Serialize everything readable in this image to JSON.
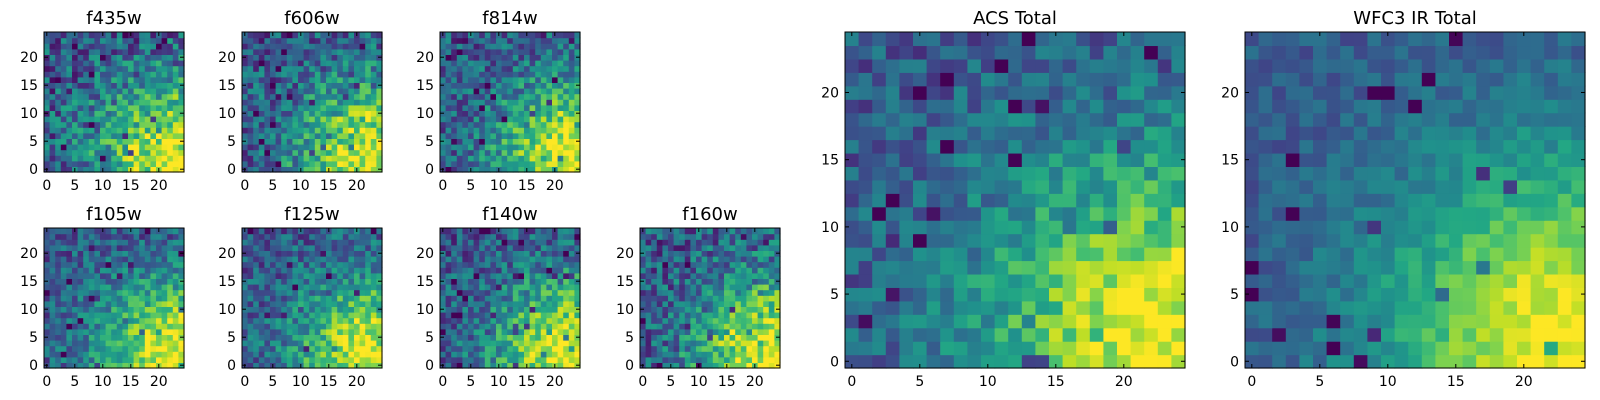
{
  "chart_data": [
    {
      "id": "f435w",
      "type": "heatmap",
      "title": "f435w",
      "grid_size": 25,
      "xlim": [
        0,
        24
      ],
      "ylim": [
        0,
        24
      ],
      "xticks": [
        0,
        5,
        10,
        15,
        20
      ],
      "yticks": [
        0,
        5,
        10,
        15,
        20
      ],
      "xtick_labels": [
        "0",
        "5",
        "10",
        "15",
        "20"
      ],
      "ytick_labels": [
        "0",
        "5",
        "10",
        "15",
        "20"
      ],
      "colormap": "viridis",
      "bright_region": "bottom-right",
      "noise": 0.33,
      "seed": 11
    },
    {
      "id": "f606w",
      "type": "heatmap",
      "title": "f606w",
      "grid_size": 25,
      "xlim": [
        0,
        24
      ],
      "ylim": [
        0,
        24
      ],
      "xticks": [
        0,
        5,
        10,
        15,
        20
      ],
      "yticks": [
        0,
        5,
        10,
        15,
        20
      ],
      "xtick_labels": [
        "0",
        "5",
        "10",
        "15",
        "20"
      ],
      "ytick_labels": [
        "0",
        "5",
        "10",
        "15",
        "20"
      ],
      "colormap": "viridis",
      "bright_region": "bottom-right",
      "noise": 0.3,
      "seed": 23
    },
    {
      "id": "f814w",
      "type": "heatmap",
      "title": "f814w",
      "grid_size": 25,
      "xlim": [
        0,
        24
      ],
      "ylim": [
        0,
        24
      ],
      "xticks": [
        0,
        5,
        10,
        15,
        20
      ],
      "yticks": [
        0,
        5,
        10,
        15,
        20
      ],
      "xtick_labels": [
        "0",
        "5",
        "10",
        "15",
        "20"
      ],
      "ytick_labels": [
        "0",
        "5",
        "10",
        "15",
        "20"
      ],
      "colormap": "viridis",
      "bright_region": "bottom-right",
      "noise": 0.28,
      "seed": 37
    },
    {
      "id": "f105w",
      "type": "heatmap",
      "title": "f105w",
      "grid_size": 25,
      "xlim": [
        0,
        24
      ],
      "ylim": [
        0,
        24
      ],
      "xticks": [
        0,
        5,
        10,
        15,
        20
      ],
      "yticks": [
        0,
        5,
        10,
        15,
        20
      ],
      "xtick_labels": [
        "0",
        "5",
        "10",
        "15",
        "20"
      ],
      "ytick_labels": [
        "0",
        "5",
        "10",
        "15",
        "20"
      ],
      "colormap": "viridis",
      "bright_region": "bottom-right",
      "noise": 0.24,
      "seed": 41
    },
    {
      "id": "f125w",
      "type": "heatmap",
      "title": "f125w",
      "grid_size": 25,
      "xlim": [
        0,
        24
      ],
      "ylim": [
        0,
        24
      ],
      "xticks": [
        0,
        5,
        10,
        15,
        20
      ],
      "yticks": [
        0,
        5,
        10,
        15,
        20
      ],
      "xtick_labels": [
        "0",
        "5",
        "10",
        "15",
        "20"
      ],
      "ytick_labels": [
        "0",
        "5",
        "10",
        "15",
        "20"
      ],
      "colormap": "viridis",
      "bright_region": "bottom-right",
      "noise": 0.26,
      "seed": 53
    },
    {
      "id": "f140w",
      "type": "heatmap",
      "title": "f140w",
      "grid_size": 25,
      "xlim": [
        0,
        24
      ],
      "ylim": [
        0,
        24
      ],
      "xticks": [
        0,
        5,
        10,
        15,
        20
      ],
      "yticks": [
        0,
        5,
        10,
        15,
        20
      ],
      "xtick_labels": [
        "0",
        "5",
        "10",
        "15",
        "20"
      ],
      "ytick_labels": [
        "0",
        "5",
        "10",
        "15",
        "20"
      ],
      "colormap": "viridis",
      "bright_region": "bottom-right",
      "noise": 0.27,
      "seed": 67
    },
    {
      "id": "f160w",
      "type": "heatmap",
      "title": "f160w",
      "grid_size": 25,
      "xlim": [
        0,
        24
      ],
      "ylim": [
        0,
        24
      ],
      "xticks": [
        0,
        5,
        10,
        15,
        20
      ],
      "yticks": [
        0,
        5,
        10,
        15,
        20
      ],
      "xtick_labels": [
        "0",
        "5",
        "10",
        "15",
        "20"
      ],
      "ytick_labels": [
        "0",
        "5",
        "10",
        "15",
        "20"
      ],
      "colormap": "viridis",
      "bright_region": "bottom-right",
      "noise": 0.3,
      "seed": 79
    },
    {
      "id": "acs-total",
      "type": "heatmap",
      "title": "ACS Total",
      "grid_size": 25,
      "xlim": [
        0,
        24
      ],
      "ylim": [
        0,
        24
      ],
      "xticks": [
        0,
        5,
        10,
        15,
        20
      ],
      "yticks": [
        0,
        5,
        10,
        15,
        20
      ],
      "xtick_labels": [
        "0",
        "5",
        "10",
        "15",
        "20"
      ],
      "ytick_labels": [
        "0",
        "5",
        "10",
        "15",
        "20"
      ],
      "colormap": "viridis",
      "bright_region": "bottom-right",
      "noise": 0.2,
      "seed": 97
    },
    {
      "id": "wfc3-ir-total",
      "type": "heatmap",
      "title": "WFC3 IR Total",
      "grid_size": 25,
      "xlim": [
        0,
        24
      ],
      "ylim": [
        0,
        24
      ],
      "xticks": [
        0,
        5,
        10,
        15,
        20
      ],
      "yticks": [
        0,
        5,
        10,
        15,
        20
      ],
      "xtick_labels": [
        "0",
        "5",
        "10",
        "15",
        "20"
      ],
      "ytick_labels": [
        "0",
        "5",
        "10",
        "15",
        "20"
      ],
      "colormap": "viridis",
      "bright_region": "bottom-right",
      "noise": 0.12,
      "seed": 113
    }
  ]
}
